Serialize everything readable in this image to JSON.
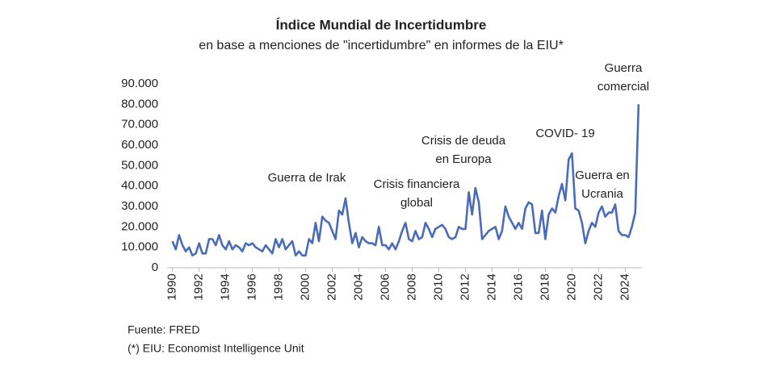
{
  "chart_data": {
    "type": "line",
    "title": "Índice Mundial de Incertidumbre",
    "subtitle": "en base a menciones de \"incertidumbre\" en informes de la EIU*",
    "x": [
      1990,
      1990.25,
      1990.5,
      1990.75,
      1991,
      1991.25,
      1991.5,
      1991.75,
      1992,
      1992.25,
      1992.5,
      1992.75,
      1993,
      1993.25,
      1993.5,
      1993.75,
      1994,
      1994.25,
      1994.5,
      1994.75,
      1995,
      1995.25,
      1995.5,
      1995.75,
      1996,
      1996.25,
      1996.5,
      1996.75,
      1997,
      1997.25,
      1997.5,
      1997.75,
      1998,
      1998.25,
      1998.5,
      1998.75,
      1999,
      1999.25,
      1999.5,
      1999.75,
      2000,
      2000.25,
      2000.5,
      2000.75,
      2001,
      2001.25,
      2001.5,
      2001.75,
      2002,
      2002.25,
      2002.5,
      2002.75,
      2003,
      2003.25,
      2003.5,
      2003.75,
      2004,
      2004.25,
      2004.5,
      2004.75,
      2005,
      2005.25,
      2005.5,
      2005.75,
      2006,
      2006.25,
      2006.5,
      2006.75,
      2007,
      2007.25,
      2007.5,
      2007.75,
      2008,
      2008.25,
      2008.5,
      2008.75,
      2009,
      2009.25,
      2009.5,
      2009.75,
      2010,
      2010.25,
      2010.5,
      2010.75,
      2011,
      2011.25,
      2011.5,
      2011.75,
      2012,
      2012.25,
      2012.5,
      2012.75,
      2013,
      2013.25,
      2013.5,
      2013.75,
      2014,
      2014.25,
      2014.5,
      2014.75,
      2015,
      2015.25,
      2015.5,
      2015.75,
      2016,
      2016.25,
      2016.5,
      2016.75,
      2017,
      2017.25,
      2017.5,
      2017.75,
      2018,
      2018.25,
      2018.5,
      2018.75,
      2019,
      2019.25,
      2019.5,
      2019.75,
      2020,
      2020.25,
      2020.5,
      2020.75,
      2021,
      2021.25,
      2021.5,
      2021.75,
      2022,
      2022.25,
      2022.5,
      2022.75,
      2023,
      2023.25,
      2023.5,
      2023.75,
      2024,
      2024.25,
      2024.5,
      2024.75,
      2025
    ],
    "series": [
      {
        "color": "#4a6cb8",
        "values": [
          13000,
          9000,
          16000,
          11000,
          8000,
          10000,
          6000,
          7000,
          12000,
          7000,
          7000,
          14000,
          14000,
          11000,
          16000,
          11000,
          9000,
          13000,
          9000,
          11000,
          10000,
          8000,
          12000,
          11000,
          12000,
          10000,
          9000,
          8000,
          11000,
          9000,
          7000,
          14000,
          10000,
          14000,
          9000,
          11000,
          13000,
          6000,
          8000,
          6000,
          6000,
          14000,
          12000,
          22000,
          13000,
          25000,
          23000,
          22000,
          18000,
          14000,
          28000,
          26000,
          34000,
          22000,
          12000,
          17000,
          10000,
          15000,
          13000,
          12000,
          12000,
          11000,
          20000,
          11000,
          11000,
          9000,
          12000,
          9000,
          13000,
          18000,
          22000,
          14000,
          13000,
          18000,
          14000,
          15000,
          22000,
          19000,
          15000,
          19000,
          20000,
          21000,
          19000,
          15000,
          14000,
          15000,
          20000,
          19000,
          19000,
          37000,
          26000,
          39000,
          32000,
          14000,
          16000,
          18000,
          19000,
          20000,
          14000,
          18000,
          30000,
          25000,
          22000,
          19000,
          22000,
          19000,
          29000,
          32000,
          31000,
          17000,
          17000,
          28000,
          14000,
          26000,
          29000,
          27000,
          35000,
          41000,
          33000,
          53000,
          56000,
          29000,
          28000,
          22000,
          12000,
          18000,
          22000,
          20000,
          27000,
          30000,
          25000,
          27000,
          27000,
          31000,
          18000,
          16000,
          16000,
          15000,
          20000,
          27000,
          80000
        ]
      }
    ],
    "xlim": [
      1989.6,
      2025.25
    ],
    "xticks": [
      1990,
      1992,
      1994,
      1996,
      1998,
      2000,
      2002,
      2004,
      2006,
      2008,
      2010,
      2012,
      2014,
      2016,
      2018,
      2020,
      2022,
      2024
    ],
    "ylim": [
      0,
      90000
    ],
    "yticks": [
      0,
      {
        "value": 10000,
        "label": "10.000"
      },
      {
        "value": 20000,
        "label": "20.000"
      },
      {
        "value": 30000,
        "label": "30.000"
      },
      {
        "value": 40000,
        "label": "40.000"
      },
      {
        "value": 50000,
        "label": "50.000"
      },
      {
        "value": 60000,
        "label": "60.000"
      },
      {
        "value": 70000,
        "label": "70.000"
      },
      {
        "value": 80000,
        "label": "80.000"
      },
      {
        "value": 90000,
        "label": "90.000"
      }
    ],
    "annotations": [
      [
        "Guerra de Irak"
      ],
      [
        "Crisis financiera",
        "global"
      ],
      [
        "Crisis de deuda",
        "en Europa"
      ],
      [
        "COVID- 19"
      ],
      [
        "Guerra en",
        "Ucrania"
      ],
      [
        "Guerra",
        "comercial"
      ]
    ],
    "notes": [
      "Fuente: FRED",
      "(*) EIU: Economist Intelligence Unit"
    ]
  }
}
